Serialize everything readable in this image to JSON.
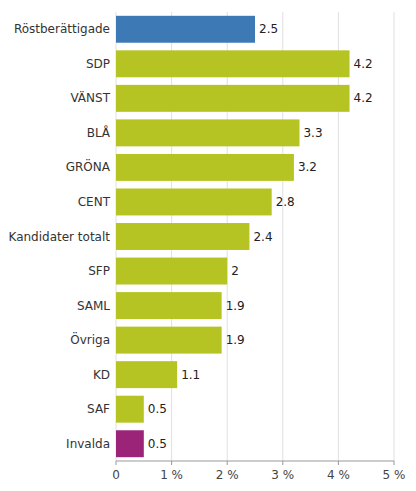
{
  "chart_data": {
    "type": "bar",
    "orientation": "horizontal",
    "categories": [
      "Röstberättigade",
      "SDP",
      "VÄNST",
      "BLÅ",
      "GRÖNA",
      "CENT",
      "Kandidater totalt",
      "SFP",
      "SAML",
      "Övriga",
      "KD",
      "SAF",
      "Invalda"
    ],
    "values": [
      2.5,
      4.2,
      4.2,
      3.3,
      3.2,
      2.8,
      2.4,
      2.0,
      1.9,
      1.9,
      1.1,
      0.5,
      0.5
    ],
    "colors": [
      "#3d7ab5",
      "#b5c423",
      "#b5c423",
      "#b5c423",
      "#b5c423",
      "#b5c423",
      "#b5c423",
      "#b5c423",
      "#b5c423",
      "#b5c423",
      "#b5c423",
      "#b5c423",
      "#9b2478"
    ],
    "xlim": [
      0,
      5
    ],
    "xticks": [
      0,
      {
        "value": 1,
        "label": "1 %"
      },
      {
        "value": 2,
        "label": "2 %"
      },
      {
        "value": 3,
        "label": "3 %"
      },
      {
        "value": 4,
        "label": "4 %"
      },
      {
        "value": 5,
        "label": "5 %"
      }
    ],
    "grid": true,
    "data_labels": true
  }
}
